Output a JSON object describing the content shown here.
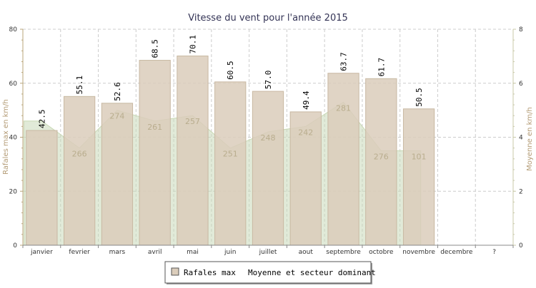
{
  "chart_data": {
    "type": "bar",
    "title": "Vitesse du vent pour l'année 2015",
    "categories": [
      "janvier",
      "fevrier",
      "mars",
      "avril",
      "mai",
      "juin",
      "juillet",
      "aout",
      "septembre",
      "octobre",
      "novembre",
      "decembre",
      "?"
    ],
    "ylabel": "Rafales max en km/h",
    "y2label": "Moyenne en km/h",
    "ylim": [
      0,
      80
    ],
    "y2lim": [
      0,
      8
    ],
    "yticks": [
      0,
      20,
      40,
      60,
      80
    ],
    "y2ticks": [
      0,
      2,
      4,
      6,
      8
    ],
    "grid": true,
    "series": [
      {
        "name": "Rafales max",
        "type": "bar",
        "axis": "left",
        "values": [
          42.5,
          55.1,
          52.6,
          68.5,
          70.1,
          60.5,
          57.0,
          49.4,
          63.7,
          61.7,
          50.5,
          null,
          null
        ],
        "labels": [
          "42.5",
          "55.1",
          "52.6",
          "68.5",
          "70.1",
          "60.5",
          "57.0",
          "49.4",
          "63.7",
          "61.7",
          "50.5",
          "",
          ""
        ],
        "color": "#dbcdbb"
      },
      {
        "name": "Moyenne et secteur dominant",
        "type": "area",
        "axis": "right",
        "values": [
          4.6,
          3.6,
          5.0,
          4.6,
          4.8,
          3.6,
          4.2,
          4.4,
          5.3,
          3.5,
          3.5,
          null,
          null
        ],
        "direction_labels": [
          "",
          "266",
          "274",
          "261",
          "257",
          "251",
          "248",
          "242",
          "281",
          "276",
          "101",
          "",
          ""
        ],
        "color": "#c9d9b8"
      }
    ],
    "legend": [
      "Rafales max",
      "Moyenne et secteur dominant"
    ],
    "legend_position": "bottom-center"
  }
}
